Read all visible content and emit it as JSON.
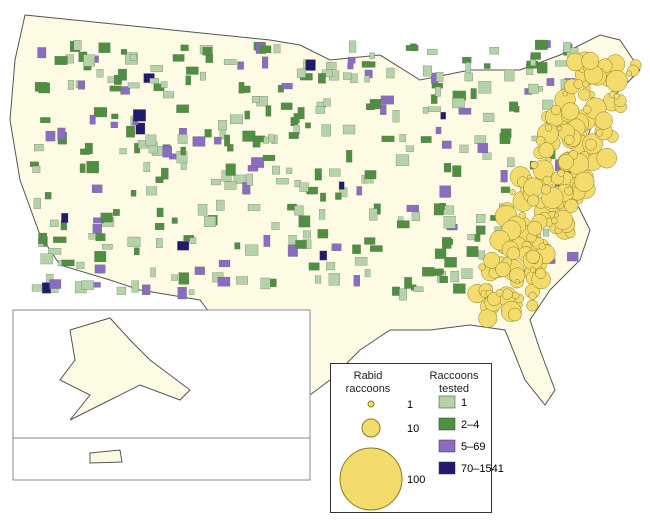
{
  "legend": {
    "rabid": {
      "title": "Rabid raccoons",
      "sizes": [
        "1",
        "10",
        "100"
      ],
      "color": "#f3dc6c"
    },
    "tested": {
      "title": "Raccoons tested",
      "classes": [
        {
          "label": "1",
          "color": "#b5d3a8"
        },
        {
          "label": "2–4",
          "color": "#4f8f40"
        },
        {
          "label": "5–69",
          "color": "#8a6cc0"
        },
        {
          "label": "70–1541",
          "color": "#231a6e"
        }
      ]
    }
  }
}
